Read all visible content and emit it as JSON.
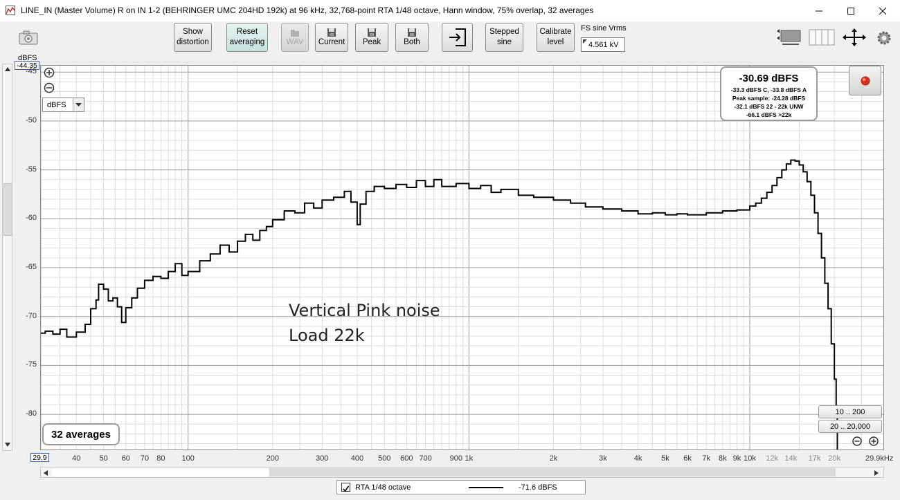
{
  "window": {
    "title": "LINE_IN (Master Volume) R on IN 1-2 (BEHRINGER UMC 204HD 192k) at 96 kHz, 32,768-point RTA 1/48 octave, Hann window, 75% overlap, 32 averages",
    "minimize": "—",
    "maximize": "☐",
    "close": "✕"
  },
  "toolbar": {
    "show_distortion": [
      "Show",
      "distortion"
    ],
    "reset_averaging": [
      "Reset",
      "averaging"
    ],
    "wav": "WAV",
    "current": "Current",
    "peak": "Peak",
    "both": "Both",
    "stepped_sine": [
      "Stepped",
      "sine"
    ],
    "calibrate_level": [
      "Calibrate",
      "level"
    ],
    "fs_label": "FS sine Vrms",
    "fs_value": "4.561 kV"
  },
  "plot": {
    "y_unit_label": "dBFS",
    "y_top_value": "-44.35",
    "unit_select": "dBFS",
    "y_ticks": [
      "-45",
      "-50",
      "-55",
      "-60",
      "-65",
      "-70",
      "-75",
      "-80"
    ],
    "x_start_label": "29.9",
    "x_end_label": "29.9kHz",
    "x_ticks": [
      "40",
      "50",
      "60",
      "70",
      "80",
      "100",
      "200",
      "300",
      "400",
      "500",
      "600",
      "700",
      "900",
      "1k",
      "2k",
      "3k",
      "4k",
      "5k",
      "6k",
      "7k",
      "8k",
      "9k",
      "10k",
      "12k",
      "14k",
      "17k",
      "20k"
    ],
    "annotation_line1": "Vertical Pink noise",
    "annotation_line2": "Load 22k",
    "averages_badge": "32 averages",
    "range_button_1": "10 .. 200",
    "range_button_2": "20 .. 20,000"
  },
  "level_readout": {
    "main": "-30.69 dBFS",
    "line1": "-33.3 dBFS C, -33.8 dBFS A",
    "line2": "Peak sample: -24.28 dBFS",
    "line3": "-32.1 dBFS 22 - 22k UNW",
    "line4": "-66.1 dBFS >22k"
  },
  "status": {
    "checkbox_checked": true,
    "trace_name": "RTA 1/48 octave",
    "trace_value": "-71.6 dBFS"
  },
  "colors": {
    "trace": "#000000",
    "grid_major": "#9a9a9a",
    "grid_minor": "#dcdcdc",
    "record_led": "#e0301e"
  },
  "chart_data": {
    "type": "line",
    "x_scale": "log",
    "xlim": [
      29.9,
      29900
    ],
    "ylim": [
      -83.6,
      -44.35
    ],
    "y_unit": "dBFS",
    "grid": true,
    "series": [
      {
        "name": "RTA 1/48 octave",
        "points": [
          [
            29.9,
            -71.7
          ],
          [
            31,
            -71.5
          ],
          [
            33,
            -71.8
          ],
          [
            35,
            -71.3
          ],
          [
            37,
            -72.1
          ],
          [
            40,
            -71.6
          ],
          [
            43,
            -70.8
          ],
          [
            45,
            -69.2
          ],
          [
            47,
            -68.3
          ],
          [
            48,
            -66.7
          ],
          [
            50,
            -67.2
          ],
          [
            52,
            -68.4
          ],
          [
            54,
            -68.1
          ],
          [
            56,
            -69.0
          ],
          [
            58,
            -70.6
          ],
          [
            60,
            -69.1
          ],
          [
            63,
            -68.1
          ],
          [
            66,
            -67.1
          ],
          [
            70,
            -66.3
          ],
          [
            75,
            -65.9
          ],
          [
            80,
            -66.1
          ],
          [
            85,
            -65.4
          ],
          [
            90,
            -64.6
          ],
          [
            95,
            -65.8
          ],
          [
            100,
            -65.4
          ],
          [
            110,
            -64.3
          ],
          [
            120,
            -63.6
          ],
          [
            130,
            -62.7
          ],
          [
            140,
            -63.4
          ],
          [
            150,
            -62.3
          ],
          [
            160,
            -61.6
          ],
          [
            170,
            -62.2
          ],
          [
            180,
            -61.2
          ],
          [
            190,
            -60.8
          ],
          [
            200,
            -60.1
          ],
          [
            220,
            -59.2
          ],
          [
            240,
            -59.4
          ],
          [
            260,
            -58.4
          ],
          [
            280,
            -58.9
          ],
          [
            300,
            -58.1
          ],
          [
            330,
            -57.8
          ],
          [
            360,
            -57.2
          ],
          [
            380,
            -58.3
          ],
          [
            400,
            -60.6
          ],
          [
            410,
            -58.5
          ],
          [
            430,
            -57.2
          ],
          [
            460,
            -56.7
          ],
          [
            500,
            -56.9
          ],
          [
            550,
            -56.5
          ],
          [
            600,
            -56.8
          ],
          [
            650,
            -56.1
          ],
          [
            700,
            -56.7
          ],
          [
            750,
            -56.0
          ],
          [
            800,
            -56.7
          ],
          [
            900,
            -56.4
          ],
          [
            1000,
            -56.9
          ],
          [
            1100,
            -56.6
          ],
          [
            1200,
            -57.3
          ],
          [
            1300,
            -57.0
          ],
          [
            1500,
            -57.6
          ],
          [
            1700,
            -57.8
          ],
          [
            2000,
            -58.1
          ],
          [
            2300,
            -58.4
          ],
          [
            2600,
            -58.8
          ],
          [
            3000,
            -59.0
          ],
          [
            3500,
            -59.2
          ],
          [
            4000,
            -59.5
          ],
          [
            4500,
            -59.4
          ],
          [
            5000,
            -59.6
          ],
          [
            5500,
            -59.5
          ],
          [
            6000,
            -59.6
          ],
          [
            7000,
            -59.4
          ],
          [
            8000,
            -59.2
          ],
          [
            9000,
            -59.1
          ],
          [
            10000,
            -58.7
          ],
          [
            10500,
            -58.4
          ],
          [
            11000,
            -57.9
          ],
          [
            11500,
            -57.3
          ],
          [
            12000,
            -56.6
          ],
          [
            12500,
            -55.8
          ],
          [
            13000,
            -55.0
          ],
          [
            13500,
            -54.4
          ],
          [
            14000,
            -54.0
          ],
          [
            14500,
            -54.1
          ],
          [
            15000,
            -54.5
          ],
          [
            15500,
            -55.2
          ],
          [
            16000,
            -56.2
          ],
          [
            16500,
            -57.6
          ],
          [
            17000,
            -59.4
          ],
          [
            17500,
            -61.5
          ],
          [
            18000,
            -64.0
          ],
          [
            18500,
            -66.6
          ],
          [
            19000,
            -69.2
          ],
          [
            19500,
            -72.8
          ],
          [
            20000,
            -76.4
          ],
          [
            20300,
            -80.0
          ],
          [
            20500,
            -83.6
          ]
        ]
      }
    ]
  }
}
